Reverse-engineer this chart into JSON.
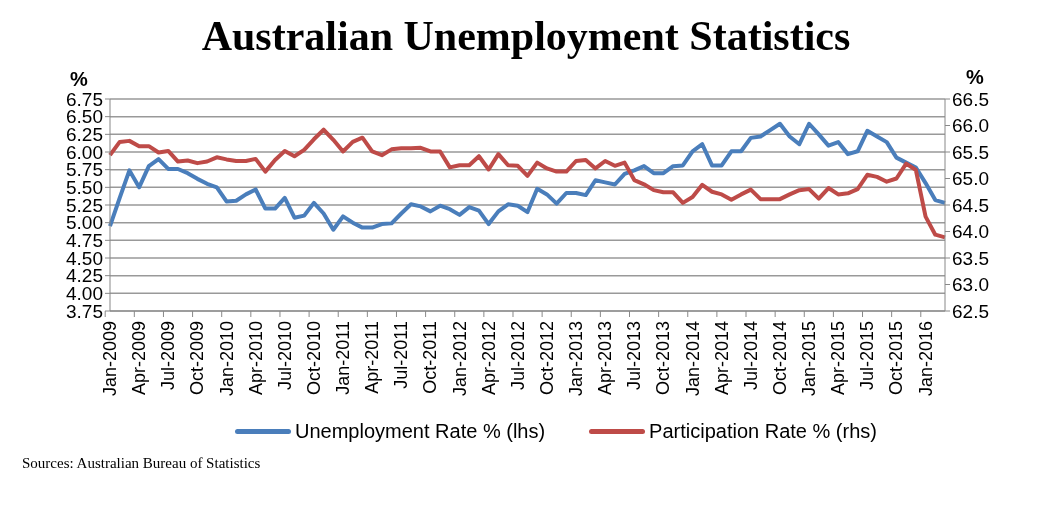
{
  "chart_data": {
    "type": "line",
    "title": "Australian Unemployment Statistics",
    "ylabel": "%",
    "y2label": "%",
    "categories": [
      "Jan-2009",
      null,
      null,
      "Apr-2009",
      null,
      null,
      "Jul-2009",
      null,
      null,
      "Oct-2009",
      null,
      null,
      "Jan-2010",
      null,
      null,
      "Apr-2010",
      null,
      null,
      "Jul-2010",
      null,
      null,
      "Oct-2010",
      null,
      null,
      "Jan-2011",
      null,
      null,
      "Apr-2011",
      null,
      null,
      "Jul-2011",
      null,
      null,
      "Oct-2011",
      null,
      null,
      "Jan-2012",
      null,
      null,
      "Apr-2012",
      null,
      null,
      "Jul-2012",
      null,
      null,
      "Oct-2012",
      null,
      null,
      "Jan-2013",
      null,
      null,
      "Apr-2013",
      null,
      null,
      "Jul-2013",
      null,
      null,
      "Oct-2013",
      null,
      null,
      "Jan-2014",
      null,
      null,
      "Apr-2014",
      null,
      null,
      "Jul-2014",
      null,
      null,
      "Oct-2014",
      null,
      null,
      "Jan-2015",
      null,
      null,
      "Apr-2015",
      null,
      null,
      "Jul-2015",
      null,
      null,
      "Oct-2015",
      null,
      null,
      "Jan-2016",
      null,
      null
    ],
    "series": [
      {
        "name": "Unemployment Rate % (lhs)",
        "color": "#4a7ebb",
        "values": [
          4.95,
          5.35,
          5.74,
          5.5,
          5.8,
          5.9,
          5.76,
          5.76,
          5.7,
          5.62,
          5.55,
          5.5,
          5.3,
          5.31,
          5.4,
          5.47,
          5.2,
          5.2,
          5.35,
          5.07,
          5.1,
          5.28,
          5.13,
          4.9,
          5.09,
          5.0,
          4.93,
          4.93,
          4.98,
          4.99,
          5.13,
          5.26,
          5.23,
          5.16,
          5.24,
          5.19,
          5.11,
          5.22,
          5.17,
          4.98,
          5.16,
          5.26,
          5.24,
          5.15,
          5.48,
          5.4,
          5.27,
          5.42,
          5.42,
          5.39,
          5.6,
          5.57,
          5.54,
          5.69,
          5.74,
          5.8,
          5.7,
          5.7,
          5.8,
          5.81,
          6.01,
          6.11,
          5.81,
          5.81,
          6.01,
          6.01,
          6.2,
          6.22,
          6.31,
          6.4,
          6.22,
          6.11,
          6.4,
          6.25,
          6.09,
          6.14,
          5.97,
          6.01,
          6.3,
          6.22,
          6.14,
          5.92,
          5.85,
          5.78,
          5.56,
          5.32,
          5.28
        ]
      },
      {
        "name": "Participation Rate % (rhs)",
        "color": "#be4b48",
        "axis": "y2",
        "values": [
          65.44,
          65.69,
          65.71,
          65.61,
          65.61,
          65.49,
          65.52,
          65.32,
          65.34,
          65.29,
          65.32,
          65.4,
          65.36,
          65.33,
          65.33,
          65.37,
          65.13,
          65.35,
          65.52,
          65.42,
          65.54,
          65.74,
          65.92,
          65.73,
          65.51,
          65.69,
          65.77,
          65.51,
          65.44,
          65.55,
          65.57,
          65.57,
          65.58,
          65.51,
          65.51,
          65.21,
          65.25,
          65.25,
          65.42,
          65.17,
          65.46,
          65.25,
          65.24,
          65.05,
          65.3,
          65.19,
          65.13,
          65.13,
          65.33,
          65.35,
          65.19,
          65.33,
          65.24,
          65.3,
          64.97,
          64.89,
          64.78,
          64.74,
          64.74,
          64.54,
          64.65,
          64.88,
          64.75,
          64.7,
          64.6,
          64.7,
          64.79,
          64.61,
          64.61,
          64.61,
          64.7,
          64.78,
          64.8,
          64.62,
          64.82,
          64.7,
          64.72,
          64.8,
          65.07,
          65.03,
          64.94,
          65.0,
          65.28,
          65.16,
          64.28,
          63.94,
          63.89
        ]
      }
    ],
    "ylim": [
      3.75,
      6.75
    ],
    "yticks": [
      3.75,
      {
        "value": 4,
        "label": "4.00"
      },
      4.25,
      {
        "value": 4.5,
        "label": "4.50"
      },
      4.75,
      {
        "value": 5,
        "label": "5.00"
      },
      5.25,
      {
        "value": 5.5,
        "label": "5.50"
      },
      5.75,
      {
        "value": 6,
        "label": "6.00"
      },
      6.25,
      {
        "value": 6.5,
        "label": "6.50"
      },
      6.75
    ],
    "y2lim": [
      62.5,
      66.5
    ],
    "y2ticks": [
      62.5,
      {
        "value": 63,
        "label": "63.0"
      },
      63.5,
      {
        "value": 64,
        "label": "64.0"
      },
      64.5,
      {
        "value": 65,
        "label": "65.0"
      },
      65.5,
      {
        "value": 66,
        "label": "66.0"
      },
      66.5
    ],
    "grid": "y",
    "legend": "bottom",
    "annotations": [
      "Sources: Australian Bureau of Statistics"
    ]
  }
}
